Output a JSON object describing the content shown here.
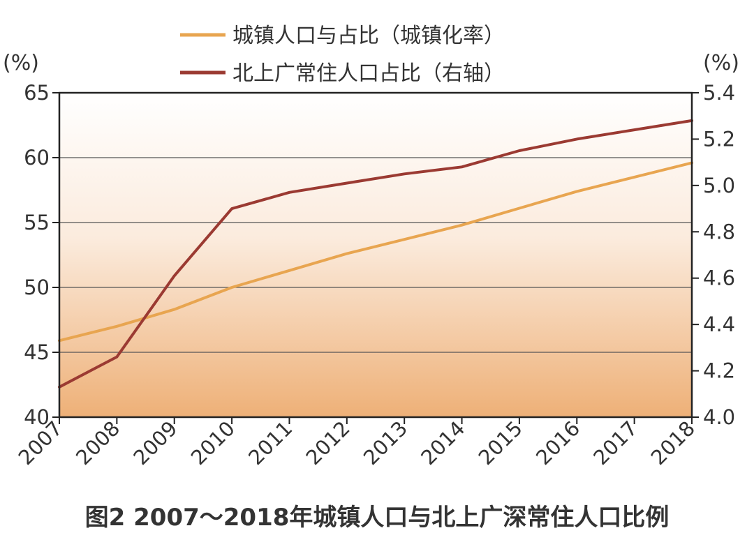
{
  "chart_data": {
    "type": "line",
    "title": "图2 2007～2018年城镇人口与北上广深常住人口比例",
    "caption_label": "图2",
    "caption_text": "2007～2018年城镇人口与北上广深常住人口比例",
    "left_unit": "(%)",
    "right_unit": "(%)",
    "categories": [
      "2007",
      "2008",
      "2009",
      "2010",
      "2011",
      "2012",
      "2013",
      "2014",
      "2015",
      "2016",
      "2017",
      "2018"
    ],
    "left_axis": {
      "ylim": [
        40,
        65
      ],
      "ticks": [
        "40",
        "45",
        "50",
        "55",
        "60",
        "65"
      ]
    },
    "right_axis": {
      "ylim": [
        4.0,
        5.4
      ],
      "ticks": [
        "4.0",
        "4.2",
        "4.4",
        "4.6",
        "4.8",
        "5.0",
        "5.2",
        "5.4"
      ]
    },
    "series": [
      {
        "name": "城镇人口与占比（城镇化率）",
        "axis": "left",
        "color": "#e8a550",
        "values": [
          45.9,
          47.0,
          48.3,
          50.0,
          51.3,
          52.6,
          53.7,
          54.8,
          56.1,
          57.4,
          58.5,
          59.6
        ]
      },
      {
        "name": "北上广常住人口占比（右轴）",
        "axis": "right",
        "color": "#9b3a32",
        "values": [
          4.13,
          4.26,
          4.61,
          4.9,
          4.97,
          5.01,
          5.05,
          5.08,
          5.15,
          5.2,
          5.24,
          5.28
        ]
      }
    ],
    "grid": true,
    "legend": "top-center",
    "colors": {
      "gradient_top": "#ffffff",
      "gradient_bottom": "#eeb077",
      "grid": "#555555",
      "frame": "#222222"
    }
  }
}
